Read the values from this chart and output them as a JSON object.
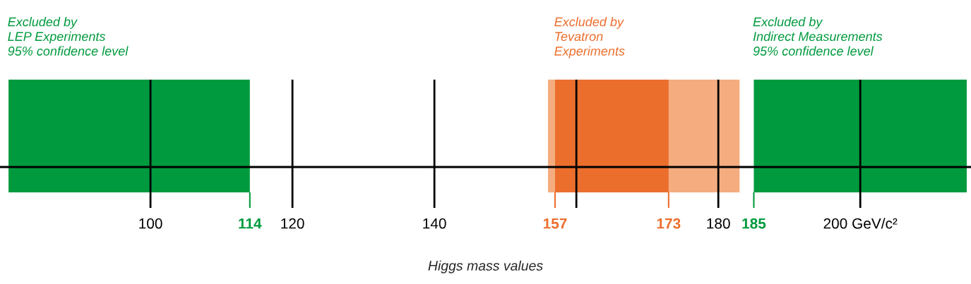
{
  "chart_data": {
    "type": "bar",
    "orientation": "horizontal",
    "xlabel": "Higgs mass values",
    "xlim": [
      78.8,
      215.6
    ],
    "xticks": [
      100,
      114,
      120,
      140,
      157,
      {
        "value": 160,
        "label": null
      },
      173,
      180,
      185,
      {
        "value": 200,
        "label": "200 GeV/c²"
      }
    ],
    "grid": "x",
    "categories": [
      null
    ],
    "series": [
      {
        "name": "Excluded by\nLEP Experiments\n95% confidence level",
        "color": "#009a3e",
        "base": [
          80
        ],
        "values": [
          34
        ]
      },
      {
        "color": "#f5ad80",
        "base": [
          156
        ],
        "values": [
          27
        ]
      },
      {
        "name": "Excluded by\nTevatron\nExperiments",
        "color": "#eb6e2d",
        "base": [
          157
        ],
        "values": [
          16
        ]
      },
      {
        "name": "Excluded by\nIndirect Measurements\n95% confidence level",
        "color": "#009a3e",
        "base": [
          185
        ],
        "values": [
          30
        ]
      }
    ]
  }
}
